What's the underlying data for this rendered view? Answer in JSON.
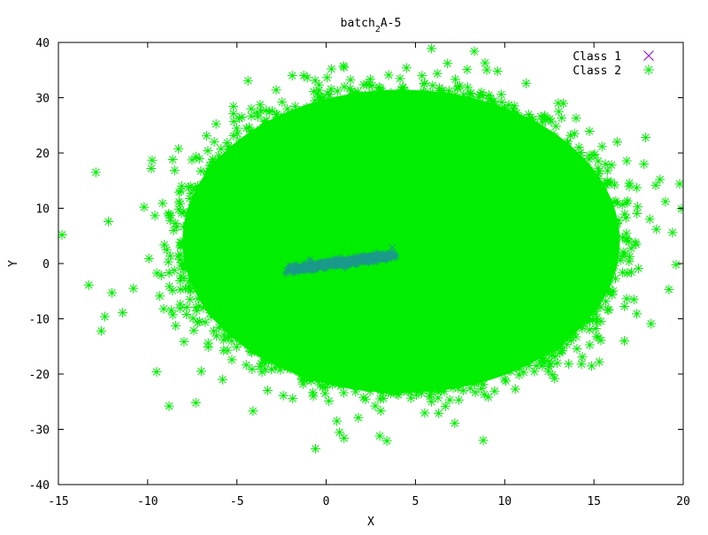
{
  "chart_data": {
    "type": "scatter",
    "title": "batch",
    "title_subscript": "2",
    "title_suffix": "A-5",
    "xlabel": "X",
    "ylabel": "Y",
    "xlim": [
      -15,
      20
    ],
    "ylim": [
      -40,
      40
    ],
    "xticks": [
      -15,
      -10,
      -5,
      0,
      5,
      10,
      15,
      20
    ],
    "yticks": [
      -40,
      -30,
      -20,
      -10,
      0,
      10,
      20,
      30,
      40
    ],
    "grid": false,
    "legend_position": "top-right",
    "series": [
      {
        "name": "Class 1",
        "color": "#9400d3",
        "marker": "x",
        "distribution": {
          "cx": 0.8,
          "cy": 0.2,
          "slope": 0.45,
          "half_length": 2.9,
          "spread": 0.35
        },
        "points": [
          [
            -2.2,
            -1.2
          ],
          [
            -1.5,
            -0.6
          ],
          [
            -0.8,
            -0.3
          ],
          [
            0.0,
            0.1
          ],
          [
            0.8,
            0.4
          ],
          [
            1.5,
            0.8
          ],
          [
            2.3,
            1.3
          ],
          [
            3.0,
            1.8
          ],
          [
            3.7,
            2.9
          ]
        ]
      },
      {
        "name": "Class 2",
        "color": "#00ee00",
        "marker": "asterisk",
        "distribution": {
          "cx": 4.2,
          "cy": 4.0,
          "rx": 12.5,
          "ry": 28.0
        },
        "points": [
          [
            -14.8,
            5.2
          ],
          [
            -13.3,
            -3.9
          ],
          [
            -12.9,
            16.5
          ],
          [
            -12.6,
            -12.2
          ],
          [
            -12.4,
            -9.6
          ],
          [
            -12.2,
            7.6
          ],
          [
            -12.0,
            -5.3
          ],
          [
            -11.4,
            -8.9
          ],
          [
            -10.8,
            -4.5
          ],
          [
            -10.2,
            10.2
          ],
          [
            -9.8,
            17.2
          ],
          [
            -9.5,
            -19.6
          ],
          [
            -9.1,
            -8.2
          ],
          [
            -8.8,
            -25.8
          ],
          [
            -8.6,
            18.8
          ],
          [
            -7.3,
            -25.2
          ],
          [
            -7.0,
            -19.5
          ],
          [
            -6.7,
            23.1
          ],
          [
            -5.8,
            -21.0
          ],
          [
            -5.2,
            27.1
          ],
          [
            -4.2,
            28.0
          ],
          [
            -3.7,
            -18.6
          ],
          [
            -2.8,
            31.4
          ],
          [
            -2.4,
            -23.9
          ],
          [
            -1.9,
            34.0
          ],
          [
            -1.3,
            -21.8
          ],
          [
            -0.6,
            -33.5
          ],
          [
            -0.4,
            32.3
          ],
          [
            0.3,
            35.2
          ],
          [
            0.6,
            -28.5
          ],
          [
            1.0,
            35.5
          ],
          [
            1.0,
            -31.6
          ],
          [
            1.8,
            -27.9
          ],
          [
            3.0,
            -31.2
          ],
          [
            3.4,
            -32.1
          ],
          [
            3.5,
            34.1
          ],
          [
            5.5,
            32.5
          ],
          [
            5.9,
            38.9
          ],
          [
            6.3,
            -27.1
          ],
          [
            6.8,
            36.2
          ],
          [
            7.2,
            -28.9
          ],
          [
            7.9,
            35.1
          ],
          [
            8.3,
            38.4
          ],
          [
            8.9,
            36.3
          ],
          [
            8.8,
            -32.0
          ],
          [
            9.6,
            34.8
          ],
          [
            11.2,
            32.6
          ],
          [
            12.8,
            -20.8
          ],
          [
            13.0,
            29.0
          ],
          [
            14.0,
            26.3
          ],
          [
            14.3,
            -18.2
          ],
          [
            15.3,
            -17.8
          ],
          [
            16.3,
            22.0
          ],
          [
            16.7,
            -14.0
          ],
          [
            17.4,
            -9.1
          ],
          [
            17.8,
            18.0
          ],
          [
            17.9,
            22.8
          ],
          [
            18.2,
            -10.9
          ],
          [
            18.5,
            6.2
          ],
          [
            18.7,
            15.2
          ],
          [
            19.0,
            11.2
          ],
          [
            19.2,
            -4.7
          ],
          [
            19.4,
            5.6
          ],
          [
            19.6,
            -0.2
          ],
          [
            19.8,
            14.4
          ],
          [
            19.9,
            9.9
          ]
        ]
      }
    ]
  }
}
